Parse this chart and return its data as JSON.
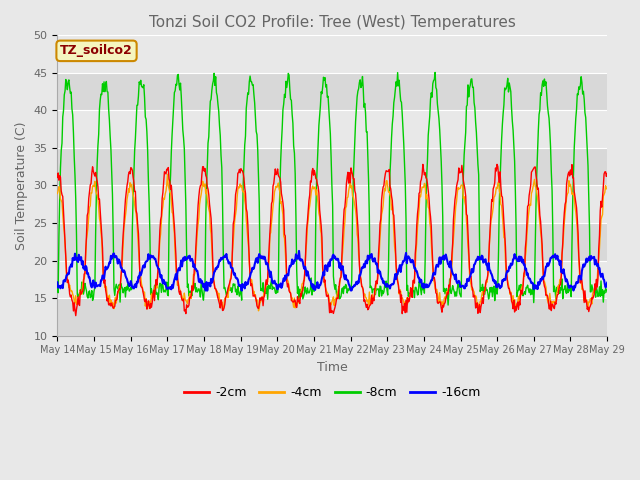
{
  "title": "Tonzi Soil CO2 Profile: Tree (West) Temperatures",
  "xlabel": "Time",
  "ylabel": "Soil Temperature (C)",
  "ylim": [
    10,
    50
  ],
  "legend_label": "TZ_soilco2",
  "series_labels": [
    "-2cm",
    "-4cm",
    "-8cm",
    "-16cm"
  ],
  "series_colors": [
    "#ff0000",
    "#ffa500",
    "#00cc00",
    "#0000ff"
  ],
  "background_color": "#e8e8e8",
  "band_colors": [
    "#d8d8d8",
    "#e8e8e8"
  ],
  "start_day": 14,
  "end_day": 29,
  "points_per_day": 48,
  "title_color": "#666666",
  "tick_color": "#666666"
}
